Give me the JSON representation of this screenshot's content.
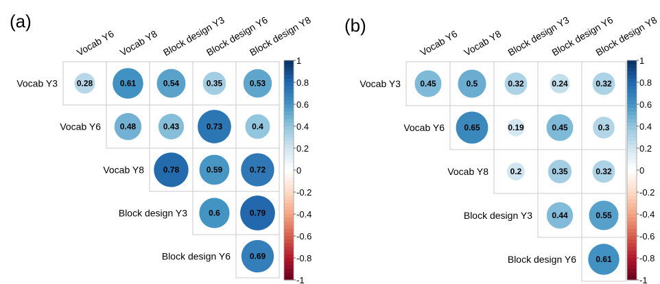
{
  "chart_data": [
    {
      "type": "heatmap",
      "panel_label": "(a)",
      "variables": [
        "Vocab Y3",
        "Vocab Y6",
        "Vocab Y8",
        "Block design Y3",
        "Block design Y6",
        "Block design Y8"
      ],
      "column_labels": [
        "Vocab Y6",
        "Vocab Y8",
        "Block design Y3",
        "Block design Y6",
        "Block design Y8"
      ],
      "row_labels": [
        "Vocab Y3",
        "Vocab Y6",
        "Vocab Y8",
        "Block design Y3",
        "Block design Y6"
      ],
      "matrix": [
        [
          "0.28",
          "0.61",
          "0.54",
          "0.35",
          "0.53"
        ],
        [
          null,
          "0.48",
          "0.43",
          "0.73",
          "0.4"
        ],
        [
          null,
          null,
          "0.78",
          "0.59",
          "0.72"
        ],
        [
          null,
          null,
          null,
          "0.6",
          "0.79"
        ],
        [
          null,
          null,
          null,
          null,
          "0.69"
        ]
      ],
      "colorbar": {
        "range": [
          -1,
          1
        ],
        "ticks": [
          "1",
          "0.8",
          "0.6",
          "0.4",
          "0.2",
          "0",
          "-0.2",
          "-0.4",
          "-0.6",
          "-0.8",
          "-1"
        ]
      }
    },
    {
      "type": "heatmap",
      "panel_label": "(b)",
      "variables": [
        "Vocab Y3",
        "Vocab Y6",
        "Vocab Y8",
        "Block design Y3",
        "Block design Y6",
        "Block design Y8"
      ],
      "column_labels": [
        "Vocab Y6",
        "Vocab Y8",
        "Block design Y3",
        "Block design Y6",
        "Block design Y8"
      ],
      "row_labels": [
        "Vocab Y3",
        "Vocab Y6",
        "Vocab Y8",
        "Block design Y3",
        "Block design Y6"
      ],
      "matrix": [
        [
          "0.45",
          "0.5",
          "0.32",
          "0.24",
          "0.32"
        ],
        [
          null,
          "0.65",
          "0.19",
          "0.45",
          "0.3"
        ],
        [
          null,
          null,
          "0.2",
          "0.35",
          "0.32"
        ],
        [
          null,
          null,
          null,
          "0.44",
          "0.55"
        ],
        [
          null,
          null,
          null,
          null,
          "0.61"
        ]
      ],
      "colorbar": {
        "range": [
          -1,
          1
        ],
        "ticks": [
          "1",
          "0.8",
          "0.6",
          "0.4",
          "0.2",
          "0",
          "-0.2",
          "-0.4",
          "-0.6",
          "-0.8",
          "-1"
        ]
      }
    }
  ]
}
